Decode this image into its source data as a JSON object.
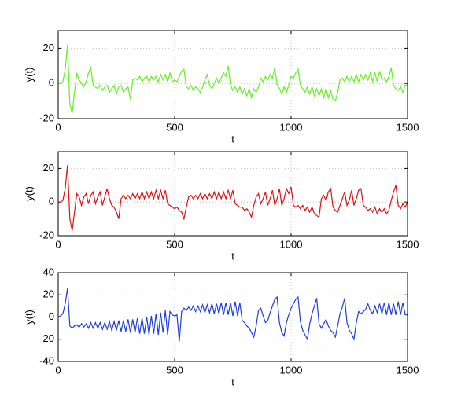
{
  "chart_data": [
    {
      "type": "line",
      "xlabel": "t",
      "ylabel": "y(t)",
      "color": "#66ee22",
      "grid": true,
      "xlim": [
        0,
        1500
      ],
      "xticks": [
        0,
        500,
        1000,
        1500
      ],
      "ylim": [
        -20,
        30
      ],
      "yticks": [
        -20,
        0,
        20
      ],
      "x": [
        0,
        10,
        20,
        30,
        40,
        50,
        60,
        70,
        80,
        90,
        100,
        110,
        120,
        130,
        140,
        150,
        160,
        170,
        180,
        190,
        200,
        210,
        220,
        230,
        240,
        250,
        260,
        270,
        280,
        290,
        300,
        310,
        320,
        330,
        340,
        350,
        360,
        370,
        380,
        390,
        400,
        410,
        420,
        430,
        440,
        450,
        460,
        470,
        480,
        490,
        500,
        510,
        520,
        530,
        540,
        550,
        560,
        570,
        580,
        590,
        600,
        610,
        620,
        630,
        640,
        650,
        660,
        670,
        680,
        690,
        700,
        710,
        720,
        730,
        740,
        750,
        760,
        770,
        780,
        790,
        800,
        810,
        820,
        830,
        840,
        850,
        860,
        870,
        880,
        890,
        900,
        910,
        920,
        930,
        940,
        950,
        960,
        970,
        980,
        990,
        1000,
        1010,
        1020,
        1030,
        1040,
        1050,
        1060,
        1070,
        1080,
        1090,
        1100,
        1110,
        1120,
        1130,
        1140,
        1150,
        1160,
        1170,
        1180,
        1190,
        1200,
        1210,
        1220,
        1230,
        1240,
        1250,
        1260,
        1270,
        1280,
        1290,
        1300,
        1310,
        1320,
        1330,
        1340,
        1350,
        1360,
        1370,
        1380,
        1390,
        1400,
        1410,
        1420,
        1430,
        1440,
        1450,
        1460,
        1470,
        1480,
        1490,
        1500
      ],
      "values": [
        0,
        0,
        1,
        8,
        22,
        -12,
        -17,
        -5,
        6,
        2,
        0,
        -2,
        1,
        6,
        9,
        -1,
        -2,
        -3,
        -1,
        -4,
        -2,
        -1,
        -5,
        -3,
        -1,
        -6,
        -2,
        -1,
        -5,
        -3,
        -2,
        -9,
        2,
        3,
        2,
        4,
        1,
        3,
        4,
        1,
        4,
        2,
        4,
        1,
        5,
        2,
        5,
        1,
        6,
        1,
        2,
        1,
        4,
        7,
        8,
        -2,
        -3,
        -1,
        -4,
        -2,
        -3,
        -5,
        -2,
        2,
        5,
        -1,
        -3,
        0,
        3,
        0,
        3,
        6,
        4,
        10,
        -1,
        -4,
        -2,
        -5,
        -2,
        -6,
        -3,
        -7,
        -3,
        -8,
        -3,
        -5,
        -2,
        3,
        1,
        4,
        2,
        5,
        3,
        9,
        -1,
        -3,
        -6,
        -2,
        -5,
        -1,
        4,
        3,
        6,
        8,
        -1,
        -3,
        -5,
        -2,
        -6,
        -2,
        -7,
        -3,
        -7,
        -3,
        -8,
        -3,
        -8,
        -4,
        -9,
        -10,
        -5,
        2,
        3,
        1,
        4,
        1,
        4,
        1,
        5,
        1,
        5,
        2,
        5,
        2,
        6,
        1,
        6,
        1,
        7,
        2,
        3,
        1,
        4,
        9,
        -1,
        -3,
        -4,
        -2,
        -5,
        -1,
        -1
      ]
    },
    {
      "type": "line",
      "xlabel": "t",
      "ylabel": "y(t)",
      "color": "#e01010",
      "grid": true,
      "xlim": [
        0,
        1500
      ],
      "xticks": [
        0,
        500,
        1000,
        1500
      ],
      "ylim": [
        -20,
        30
      ],
      "yticks": [
        -20,
        0,
        20
      ],
      "x": [
        0,
        10,
        20,
        30,
        40,
        50,
        60,
        70,
        80,
        90,
        100,
        110,
        120,
        130,
        140,
        150,
        160,
        170,
        180,
        190,
        200,
        210,
        220,
        230,
        240,
        250,
        260,
        270,
        280,
        290,
        300,
        310,
        320,
        330,
        340,
        350,
        360,
        370,
        380,
        390,
        400,
        410,
        420,
        430,
        440,
        450,
        460,
        470,
        480,
        490,
        500,
        510,
        520,
        530,
        540,
        550,
        560,
        570,
        580,
        590,
        600,
        610,
        620,
        630,
        640,
        650,
        660,
        670,
        680,
        690,
        700,
        710,
        720,
        730,
        740,
        750,
        760,
        770,
        780,
        790,
        800,
        810,
        820,
        830,
        840,
        850,
        860,
        870,
        880,
        890,
        900,
        910,
        920,
        930,
        940,
        950,
        960,
        970,
        980,
        990,
        1000,
        1010,
        1020,
        1030,
        1040,
        1050,
        1060,
        1070,
        1080,
        1090,
        1100,
        1110,
        1120,
        1130,
        1140,
        1150,
        1160,
        1170,
        1180,
        1190,
        1200,
        1210,
        1220,
        1230,
        1240,
        1250,
        1260,
        1270,
        1280,
        1290,
        1300,
        1310,
        1320,
        1330,
        1340,
        1350,
        1360,
        1370,
        1380,
        1390,
        1400,
        1410,
        1420,
        1430,
        1440,
        1450,
        1460,
        1470,
        1480,
        1490,
        1500
      ],
      "values": [
        0,
        0,
        1,
        8,
        22,
        -10,
        -17,
        -6,
        5,
        3,
        -2,
        3,
        5,
        -1,
        4,
        6,
        -1,
        3,
        6,
        -2,
        3,
        8,
        2,
        -2,
        -3,
        -6,
        -10,
        2,
        4,
        2,
        4,
        2,
        5,
        2,
        5,
        2,
        6,
        2,
        6,
        2,
        6,
        2,
        7,
        2,
        7,
        2,
        7,
        -1,
        -2,
        -3,
        -4,
        -3,
        -5,
        -6,
        -10,
        -3,
        3,
        4,
        2,
        4,
        2,
        5,
        2,
        5,
        2,
        5,
        2,
        6,
        2,
        6,
        2,
        6,
        2,
        7,
        2,
        7,
        -1,
        -2,
        -3,
        -3,
        -5,
        -4,
        -6,
        -9,
        -2,
        3,
        5,
        -1,
        2,
        6,
        -2,
        2,
        7,
        -2,
        2,
        8,
        -2,
        2,
        8,
        5,
        9,
        -2,
        -3,
        -2,
        -4,
        -2,
        -5,
        -3,
        -6,
        -3,
        -7,
        -8,
        -9,
        2,
        4,
        1,
        6,
        8,
        -3,
        -5,
        -6,
        -2,
        2,
        6,
        -2,
        1,
        7,
        -2,
        2,
        7,
        8,
        -2,
        -3,
        -5,
        -4,
        -6,
        -3,
        -7,
        -4,
        -6,
        -4,
        -7,
        -5,
        1,
        6,
        10,
        -2,
        -4,
        -1,
        -3,
        0
      ]
    },
    {
      "type": "line",
      "xlabel": "t",
      "ylabel": "y(t)",
      "color": "#1f3fe0",
      "grid": true,
      "xlim": [
        0,
        1500
      ],
      "xticks": [
        0,
        500,
        1000,
        1500
      ],
      "ylim": [
        -40,
        40
      ],
      "yticks": [
        -40,
        -20,
        0,
        20,
        40
      ],
      "x": [
        0,
        10,
        20,
        30,
        40,
        50,
        60,
        70,
        80,
        90,
        100,
        110,
        120,
        130,
        140,
        150,
        160,
        170,
        180,
        190,
        200,
        210,
        220,
        230,
        240,
        250,
        260,
        270,
        280,
        290,
        300,
        310,
        320,
        330,
        340,
        350,
        360,
        370,
        380,
        390,
        400,
        410,
        420,
        430,
        440,
        450,
        460,
        470,
        480,
        490,
        500,
        510,
        520,
        530,
        540,
        550,
        560,
        570,
        580,
        590,
        600,
        610,
        620,
        630,
        640,
        650,
        660,
        670,
        680,
        690,
        700,
        710,
        720,
        730,
        740,
        750,
        760,
        770,
        780,
        790,
        800,
        810,
        820,
        830,
        840,
        850,
        860,
        870,
        880,
        890,
        900,
        910,
        920,
        930,
        940,
        950,
        960,
        970,
        980,
        990,
        1000,
        1010,
        1020,
        1030,
        1040,
        1050,
        1060,
        1070,
        1080,
        1090,
        1100,
        1110,
        1120,
        1130,
        1140,
        1150,
        1160,
        1170,
        1180,
        1190,
        1200,
        1210,
        1220,
        1230,
        1240,
        1250,
        1260,
        1270,
        1280,
        1290,
        1300,
        1310,
        1320,
        1330,
        1340,
        1350,
        1360,
        1370,
        1380,
        1390,
        1400,
        1410,
        1420,
        1430,
        1440,
        1450,
        1460,
        1470,
        1480,
        1490,
        1500
      ],
      "values": [
        0,
        1,
        3,
        12,
        26,
        -8,
        -10,
        -8,
        -7,
        -9,
        -6,
        -9,
        -6,
        -10,
        -5,
        -10,
        -5,
        -10,
        -5,
        -11,
        -5,
        -11,
        -4,
        -12,
        -4,
        -12,
        -3,
        -13,
        -3,
        -13,
        -2,
        -14,
        -2,
        -14,
        -1,
        -15,
        -1,
        -15,
        0,
        -16,
        1,
        -15,
        3,
        -16,
        4,
        -14,
        6,
        -16,
        5,
        2,
        1,
        2,
        -22,
        5,
        8,
        6,
        9,
        6,
        10,
        5,
        10,
        5,
        11,
        4,
        11,
        4,
        12,
        3,
        12,
        3,
        13,
        2,
        13,
        2,
        13,
        1,
        14,
        1,
        13,
        -3,
        -5,
        -8,
        -10,
        -14,
        -18,
        -8,
        6,
        8,
        1,
        -5,
        -3,
        4,
        10,
        16,
        18,
        -5,
        -14,
        -17,
        -5,
        2,
        8,
        12,
        16,
        18,
        -4,
        -12,
        -16,
        -20,
        -6,
        3,
        10,
        17,
        -6,
        -10,
        -6,
        -2,
        -8,
        -12,
        -14,
        -18,
        -8,
        3,
        9,
        17,
        -5,
        -12,
        -15,
        -20,
        -5,
        5,
        3,
        5,
        7,
        12,
        6,
        3,
        10,
        4,
        12,
        3,
        13,
        2,
        13,
        2,
        12,
        2,
        14,
        2,
        13,
        2,
        2
      ]
    }
  ]
}
